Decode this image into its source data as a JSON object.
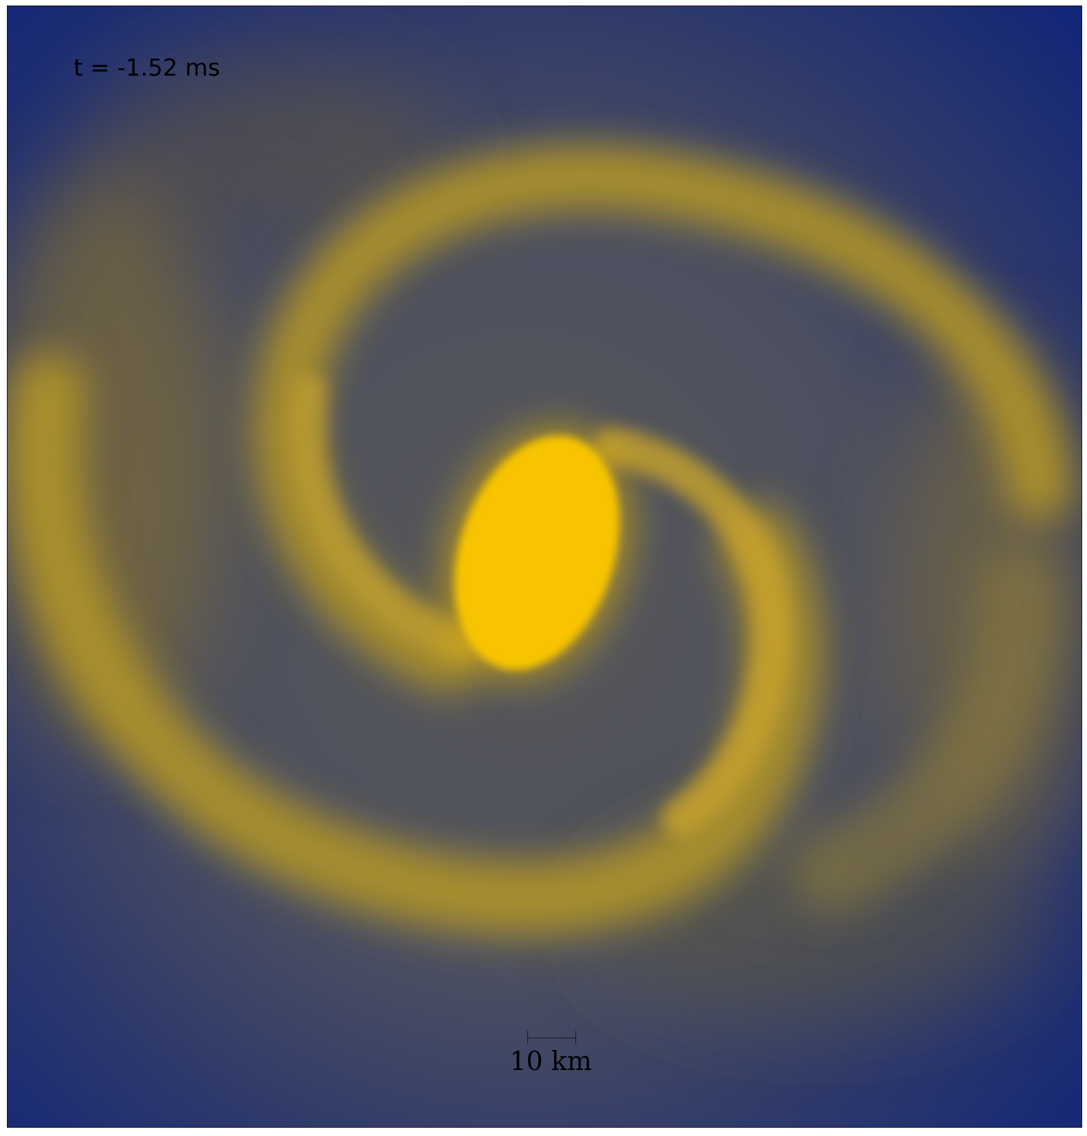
{
  "annotation": {
    "time_label": "t = -1.52 ms"
  },
  "scale_bar": {
    "label": "10 km"
  },
  "colors": {
    "background_deep": "#0f237a",
    "envelope_gray": "#55555a",
    "arm_gold": "#b0952c",
    "core_yellow": "#f8c400"
  }
}
